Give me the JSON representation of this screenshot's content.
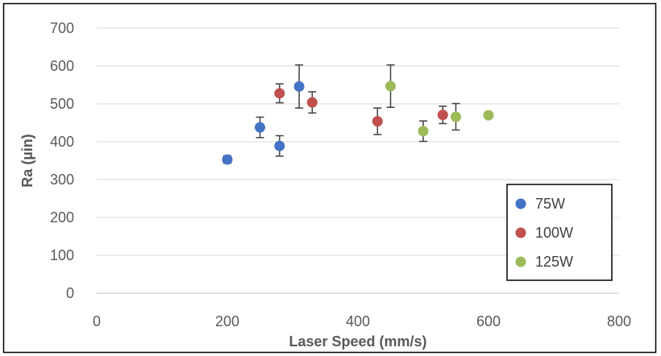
{
  "chart_data": {
    "type": "scatter",
    "title": "",
    "xlabel": "Laser Speed (mm/s)",
    "ylabel": "Ra (µin)",
    "xlim": [
      0,
      800
    ],
    "ylim": [
      0,
      700
    ],
    "xticks": [
      0,
      200,
      400,
      600,
      800
    ],
    "yticks": [
      0,
      100,
      200,
      300,
      400,
      500,
      600,
      700
    ],
    "grid": "horizontal",
    "legend_position": "bottom-right",
    "error_bars": true,
    "series": [
      {
        "name": "75W",
        "color": "#4472C4",
        "points": [
          {
            "x": 200,
            "y": 353,
            "err": 10
          },
          {
            "x": 250,
            "y": 438,
            "err": 27
          },
          {
            "x": 280,
            "y": 389,
            "err": 27
          },
          {
            "x": 310,
            "y": 546,
            "err": 57
          }
        ]
      },
      {
        "name": "100W",
        "color": "#C0504D",
        "points": [
          {
            "x": 280,
            "y": 528,
            "err": 25
          },
          {
            "x": 330,
            "y": 504,
            "err": 28
          },
          {
            "x": 430,
            "y": 454,
            "err": 35
          },
          {
            "x": 530,
            "y": 471,
            "err": 23
          }
        ]
      },
      {
        "name": "125W",
        "color": "#9BBB59",
        "points": [
          {
            "x": 450,
            "y": 547,
            "err": 56
          },
          {
            "x": 500,
            "y": 428,
            "err": 27
          },
          {
            "x": 550,
            "y": 466,
            "err": 35
          },
          {
            "x": 600,
            "y": 470,
            "err": 7
          }
        ]
      }
    ]
  }
}
